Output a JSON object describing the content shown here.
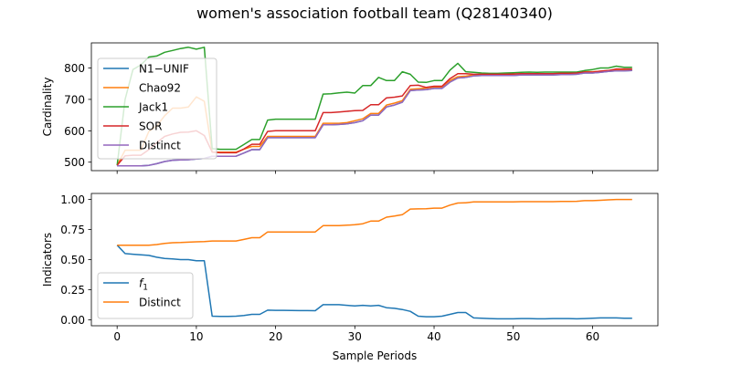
{
  "figure": {
    "title": "women's association football team (Q28140340)"
  },
  "chart_data": [
    {
      "type": "line",
      "ylabel": "Cardinality",
      "xlim": [
        -3.25,
        68.25
      ],
      "ylim": [
        473,
        880
      ],
      "yticks": [
        500,
        600,
        700,
        800
      ],
      "xticks": [
        0,
        10,
        20,
        30,
        40,
        50,
        60
      ],
      "show_xticklabels": false,
      "legend": {
        "location": "upper-left"
      },
      "series": [
        {
          "name": "N1−UNIF",
          "color": "#1f77b4",
          "values": [
            488,
            488,
            488,
            488,
            490,
            495,
            502,
            506,
            507,
            508,
            510,
            512,
            519,
            519,
            519,
            519,
            529,
            540,
            540,
            578,
            578,
            578,
            578,
            578,
            578,
            578,
            619,
            619,
            620,
            622,
            626,
            632,
            650,
            650,
            676,
            682,
            691,
            728,
            730,
            731,
            735,
            735,
            755,
            768,
            770,
            775,
            776,
            776,
            776,
            776,
            776,
            778,
            778,
            778,
            778,
            778,
            779,
            779,
            780,
            784,
            784,
            786,
            789,
            791,
            791,
            792
          ]
        },
        {
          "name": "Chao92",
          "color": "#ff7f0e",
          "values": [
            490,
            538,
            538,
            538,
            598,
            615,
            648,
            672,
            672,
            676,
            708,
            694,
            532,
            532,
            532,
            532,
            541,
            550,
            550,
            582,
            582,
            582,
            582,
            582,
            582,
            582,
            624,
            624,
            624,
            626,
            632,
            638,
            655,
            655,
            682,
            688,
            696,
            732,
            734,
            736,
            740,
            740,
            760,
            772,
            774,
            778,
            780,
            780,
            780,
            780,
            780,
            782,
            782,
            782,
            782,
            782,
            783,
            783,
            784,
            788,
            788,
            790,
            792,
            795,
            795,
            796
          ]
        },
        {
          "name": "Jack1",
          "color": "#2ca02c",
          "values": [
            490,
            700,
            795,
            810,
            835,
            838,
            850,
            856,
            862,
            866,
            860,
            866,
            543,
            541,
            541,
            541,
            556,
            572,
            572,
            634,
            637,
            637,
            637,
            637,
            637,
            637,
            717,
            718,
            721,
            723,
            720,
            744,
            744,
            770,
            760,
            760,
            788,
            780,
            755,
            754,
            760,
            760,
            793,
            815,
            788,
            786,
            784,
            783,
            783,
            784,
            785,
            786,
            787,
            786,
            787,
            787,
            787,
            787,
            787,
            792,
            795,
            800,
            800,
            806,
            802,
            802
          ]
        },
        {
          "name": "SOR",
          "color": "#d62728",
          "values": [
            490,
            520,
            522,
            522,
            540,
            562,
            582,
            590,
            595,
            596,
            600,
            585,
            532,
            530,
            530,
            530,
            542,
            557,
            557,
            598,
            600,
            600,
            600,
            600,
            600,
            600,
            658,
            658,
            660,
            662,
            664,
            665,
            683,
            683,
            705,
            707,
            711,
            744,
            745,
            738,
            742,
            742,
            766,
            782,
            782,
            780,
            780,
            780,
            780,
            780,
            781,
            782,
            782,
            782,
            782,
            782,
            783,
            783,
            784,
            787,
            787,
            790,
            792,
            797,
            797,
            797
          ]
        },
        {
          "name": "Distinct",
          "color": "#9467bd",
          "values": [
            488,
            488,
            488,
            488,
            490,
            495,
            502,
            506,
            507,
            508,
            510,
            512,
            519,
            519,
            519,
            519,
            529,
            540,
            540,
            578,
            578,
            578,
            578,
            578,
            578,
            578,
            619,
            619,
            620,
            622,
            626,
            632,
            650,
            650,
            676,
            682,
            691,
            728,
            730,
            731,
            735,
            735,
            755,
            768,
            770,
            775,
            776,
            776,
            776,
            776,
            776,
            778,
            778,
            778,
            778,
            778,
            779,
            779,
            780,
            784,
            784,
            786,
            789,
            791,
            791,
            792
          ]
        }
      ]
    },
    {
      "type": "line",
      "ylabel": "Indicators",
      "xlabel": "Sample Periods",
      "xlim": [
        -3.25,
        68.25
      ],
      "ylim": [
        -0.05,
        1.05
      ],
      "yticks": [
        0.0,
        0.25,
        0.5,
        0.75,
        1.0
      ],
      "ytick_labels": [
        "0.00",
        "0.25",
        "0.50",
        "0.75",
        "1.00"
      ],
      "xticks": [
        0,
        10,
        20,
        30,
        40,
        50,
        60
      ],
      "xtick_labels": [
        "0",
        "10",
        "20",
        "30",
        "40",
        "50",
        "60"
      ],
      "show_xticklabels": true,
      "legend": {
        "location": "lower-left"
      },
      "series": [
        {
          "name": "f1",
          "name_base": "f",
          "name_sub": "1",
          "color": "#1f77b4",
          "values": [
            0.62,
            0.55,
            0.545,
            0.54,
            0.535,
            0.52,
            0.51,
            0.505,
            0.5,
            0.5,
            0.49,
            0.49,
            0.03,
            0.028,
            0.028,
            0.03,
            0.035,
            0.045,
            0.045,
            0.08,
            0.078,
            0.078,
            0.077,
            0.076,
            0.076,
            0.075,
            0.125,
            0.125,
            0.125,
            0.12,
            0.115,
            0.12,
            0.115,
            0.12,
            0.1,
            0.095,
            0.085,
            0.07,
            0.03,
            0.025,
            0.025,
            0.03,
            0.045,
            0.06,
            0.06,
            0.015,
            0.012,
            0.01,
            0.008,
            0.008,
            0.008,
            0.01,
            0.01,
            0.008,
            0.008,
            0.01,
            0.01,
            0.01,
            0.008,
            0.01,
            0.012,
            0.015,
            0.015,
            0.015,
            0.012,
            0.012
          ]
        },
        {
          "name": "Distinct",
          "color": "#ff7f0e",
          "values": [
            0.62,
            0.62,
            0.62,
            0.62,
            0.62,
            0.625,
            0.635,
            0.64,
            0.642,
            0.645,
            0.648,
            0.65,
            0.655,
            0.655,
            0.655,
            0.655,
            0.668,
            0.682,
            0.682,
            0.73,
            0.73,
            0.73,
            0.73,
            0.73,
            0.73,
            0.73,
            0.782,
            0.782,
            0.783,
            0.786,
            0.79,
            0.798,
            0.82,
            0.82,
            0.853,
            0.862,
            0.873,
            0.92,
            0.922,
            0.923,
            0.928,
            0.928,
            0.953,
            0.97,
            0.973,
            0.98,
            0.98,
            0.98,
            0.98,
            0.98,
            0.98,
            0.982,
            0.982,
            0.982,
            0.982,
            0.982,
            0.984,
            0.984,
            0.985,
            0.99,
            0.99,
            0.993,
            0.997,
            1.0,
            1.0,
            1.0
          ]
        }
      ]
    }
  ]
}
